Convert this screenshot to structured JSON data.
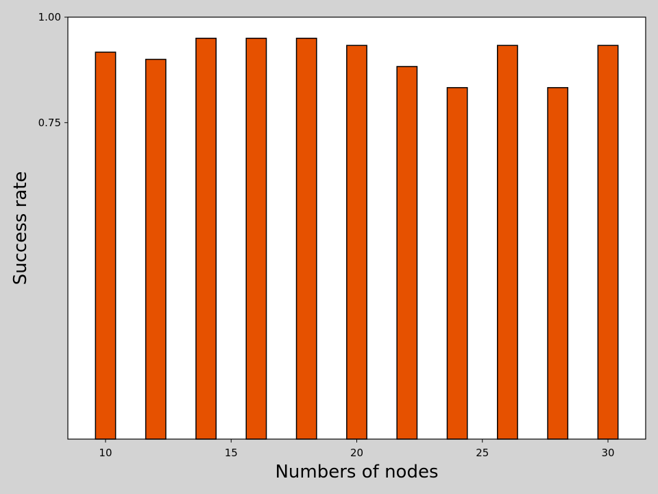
{
  "chart_data": {
    "type": "bar",
    "title": "",
    "xlabel": "Numbers of nodes",
    "ylabel": "Success rate",
    "x": [
      10,
      12,
      14,
      16,
      18,
      20,
      22,
      24,
      26,
      28,
      30
    ],
    "values": [
      0.917,
      0.9,
      0.95,
      0.95,
      0.95,
      0.933,
      0.883,
      0.833,
      0.933,
      0.833,
      0.933
    ],
    "xlim": [
      8.5,
      31.5
    ],
    "ylim": [
      0.0,
      1.0
    ],
    "xticks": [
      10,
      15,
      20,
      25,
      30
    ],
    "xtick_labels": [
      "10",
      "15",
      "20",
      "25",
      "30"
    ],
    "yticks": [
      0.75,
      1.0
    ],
    "ytick_labels": [
      "0.75",
      "1.00"
    ],
    "bar_width": 0.8,
    "bar_color": "#e65100",
    "edge_color": "#000000",
    "plot_background": "#ffffff",
    "figure_background": "#d3d3d3",
    "grid": false,
    "legend": "none"
  }
}
